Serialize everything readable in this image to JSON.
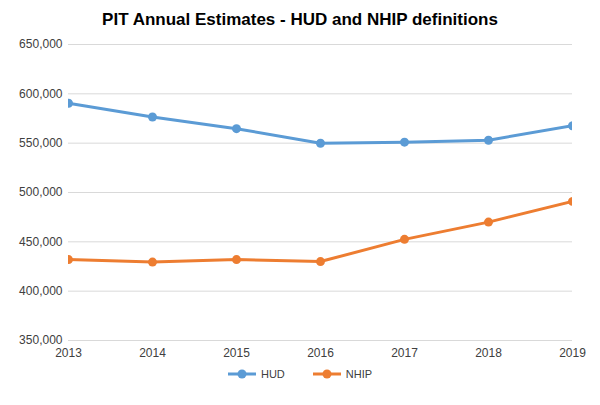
{
  "chart_data": {
    "type": "line",
    "title": "PIT Annual Estimates - HUD and NHIP definitions",
    "x": [
      2013,
      2014,
      2015,
      2016,
      2017,
      2018,
      2019
    ],
    "series": [
      {
        "name": "HUD",
        "color": "#5b9bd5",
        "marker": "circle",
        "values": [
          590500,
          576500,
          564700,
          549900,
          551000,
          553000,
          567700
        ]
      },
      {
        "name": "NHIP",
        "color": "#ed7d31",
        "marker": "circle",
        "values": [
          432000,
          429500,
          432000,
          430000,
          452500,
          470000,
          491000
        ]
      }
    ],
    "xlim": [
      2013,
      2019
    ],
    "xticks": [
      2013,
      2014,
      2015,
      2016,
      2017,
      2018,
      2019
    ],
    "ylim": [
      350000,
      650000
    ],
    "yticks": [
      {
        "value": 350000,
        "label": "350,000"
      },
      {
        "value": 400000,
        "label": "400,000"
      },
      {
        "value": 450000,
        "label": "450,000"
      },
      {
        "value": 500000,
        "label": "500,000"
      },
      {
        "value": 550000,
        "label": "550,000"
      },
      {
        "value": 600000,
        "label": "600,000"
      },
      {
        "value": 650000,
        "label": "650,000"
      }
    ],
    "grid": true,
    "legend": "bottom"
  }
}
